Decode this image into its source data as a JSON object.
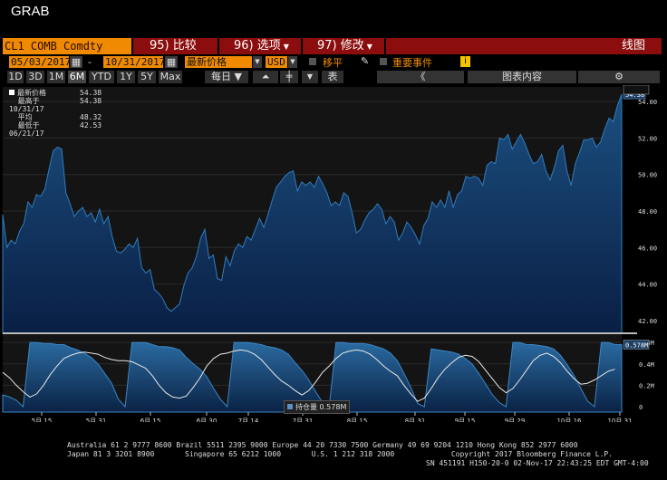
{
  "window_title": "GRAB",
  "command_bar": {
    "ticker": "CL1 COMB Comdty",
    "menu1": "95) 比较",
    "menu2": "96) 选项",
    "menu3": "97) 修改",
    "view_label": "线图"
  },
  "controls": {
    "start_date": "05/03/2017",
    "end_date": "10/31/2017",
    "dash": "-",
    "field": "最新价格",
    "currency": "USD",
    "move_label": "移平",
    "events_label": "重要事件",
    "info_glyph": "i"
  },
  "toolbar": {
    "ranges": [
      "1D",
      "3D",
      "1M",
      "6M",
      "YTD",
      "1Y",
      "5Y",
      "Max"
    ],
    "selected_range": "6M",
    "period": "每日",
    "table_label": "表",
    "back_glyph": "《",
    "chart_content_label": "图表内容",
    "settings_glyph": "⚙"
  },
  "legend": [
    {
      "label": "最新价格",
      "value": "54.38"
    },
    {
      "label": "最高于 10/31/17",
      "value": "54.38"
    },
    {
      "label": "平均",
      "value": "48.32"
    },
    {
      "label": "最低于 06/21/17",
      "value": "42.53"
    }
  ],
  "chart_data": {
    "type": "area",
    "panels": [
      {
        "name": "price",
        "y_ticks": [
          "42.00",
          "44.00",
          "46.00",
          "48.00",
          "50.00",
          "52.00",
          "54.00"
        ],
        "ylim": [
          41.3,
          54.8
        ],
        "last_label": "54.38",
        "values": [
          47.8,
          46.0,
          46.4,
          46.2,
          46.9,
          47.3,
          48.5,
          48.2,
          48.9,
          48.8,
          49.2,
          50.3,
          51.3,
          51.5,
          51.4,
          49.0,
          48.4,
          47.7,
          48.0,
          48.2,
          47.7,
          47.9,
          47.4,
          48.1,
          47.3,
          47.7,
          46.6,
          45.8,
          45.7,
          45.9,
          46.2,
          46.0,
          46.5,
          44.9,
          44.6,
          44.8,
          43.7,
          43.5,
          43.2,
          42.7,
          42.5,
          42.7,
          42.9,
          43.9,
          44.6,
          44.9,
          45.5,
          46.5,
          47.0,
          45.4,
          45.6,
          44.3,
          44.2,
          45.5,
          45.0,
          45.8,
          46.2,
          46.0,
          46.6,
          46.4,
          47.0,
          47.6,
          47.1,
          47.8,
          48.6,
          49.3,
          49.6,
          49.9,
          50.1,
          50.2,
          49.1,
          49.6,
          49.4,
          49.6,
          49.3,
          49.9,
          49.5,
          49.0,
          48.3,
          48.5,
          48.3,
          49.0,
          48.8,
          47.9,
          46.8,
          47.0,
          47.5,
          47.9,
          48.1,
          48.4,
          48.1,
          47.3,
          47.7,
          47.4,
          46.4,
          46.8,
          47.4,
          47.1,
          46.7,
          46.2,
          47.2,
          47.6,
          48.5,
          48.2,
          48.6,
          48.2,
          49.1,
          48.2,
          48.9,
          49.1,
          49.9,
          49.8,
          49.9,
          49.8,
          49.4,
          50.5,
          50.7,
          50.6,
          52.0,
          51.9,
          52.2,
          51.4,
          51.8,
          52.2,
          51.7,
          51.1,
          50.6,
          50.7,
          51.1,
          50.2,
          49.7,
          50.4,
          51.3,
          51.6,
          50.2,
          49.4,
          50.6,
          51.2,
          51.9,
          51.9,
          52.0,
          51.5,
          51.8,
          52.5,
          53.1,
          52.9,
          53.8,
          54.4
        ]
      },
      {
        "name": "open_interest",
        "legend_label": "持仓量",
        "legend_value": "0.578M",
        "y_ticks": [
          "0",
          "0.2M",
          "0.4M",
          "0.6M"
        ],
        "ylim": [
          -0.05,
          0.66
        ],
        "labels": [
          "0.578M",
          "0.354M"
        ],
        "series": [
          {
            "name": "持仓量",
            "values": [
              0.11,
              0.09,
              0.06,
              0.0,
              0.6,
              0.6,
              0.59,
              0.59,
              0.58,
              0.58,
              0.55,
              0.53,
              0.5,
              0.46,
              0.4,
              0.31,
              0.22,
              0.07,
              0.0,
              0.6,
              0.6,
              0.6,
              0.58,
              0.56,
              0.56,
              0.55,
              0.53,
              0.46,
              0.4,
              0.35,
              0.28,
              0.17,
              0.07,
              0.0,
              0.6,
              0.6,
              0.6,
              0.59,
              0.58,
              0.56,
              0.55,
              0.53,
              0.49,
              0.41,
              0.34,
              0.25,
              0.14,
              0.04,
              0.0,
              0.6,
              0.6,
              0.59,
              0.59,
              0.59,
              0.58,
              0.56,
              0.54,
              0.5,
              0.43,
              0.31,
              0.18,
              0.03,
              0.0,
              0.54,
              0.53,
              0.52,
              0.51,
              0.49,
              0.45,
              0.4,
              0.31,
              0.21,
              0.11,
              0.04,
              0.0,
              0.6,
              0.6,
              0.58,
              0.58,
              0.57,
              0.56,
              0.54,
              0.48,
              0.39,
              0.29,
              0.17,
              0.05,
              0.0,
              0.6,
              0.6,
              0.58,
              0.58
            ]
          },
          {
            "name": "line",
            "values": [
              0.32,
              0.27,
              0.2,
              0.14,
              0.09,
              0.12,
              0.2,
              0.3,
              0.38,
              0.45,
              0.48,
              0.5,
              0.51,
              0.5,
              0.49,
              0.46,
              0.44,
              0.43,
              0.43,
              0.42,
              0.39,
              0.36,
              0.29,
              0.2,
              0.13,
              0.09,
              0.08,
              0.1,
              0.18,
              0.27,
              0.38,
              0.45,
              0.49,
              0.5,
              0.52,
              0.53,
              0.52,
              0.49,
              0.44,
              0.37,
              0.3,
              0.24,
              0.2,
              0.15,
              0.11,
              0.15,
              0.23,
              0.32,
              0.38,
              0.45,
              0.5,
              0.52,
              0.53,
              0.52,
              0.49,
              0.44,
              0.38,
              0.33,
              0.29,
              0.2,
              0.12,
              0.05,
              0.08,
              0.17,
              0.27,
              0.35,
              0.41,
              0.46,
              0.48,
              0.47,
              0.42,
              0.34,
              0.26,
              0.18,
              0.13,
              0.17,
              0.25,
              0.34,
              0.43,
              0.48,
              0.5,
              0.47,
              0.41,
              0.33,
              0.26,
              0.21,
              0.22,
              0.25,
              0.29,
              0.33,
              0.35
            ]
          }
        ]
      }
    ],
    "x_ticks": [
      "5月 15",
      "5月 31",
      "6月 15",
      "6月 30",
      "7月 14",
      "7月 31",
      "8月 15",
      "8月 31",
      "9月 15",
      "9月 29",
      "10月 16",
      "10月 31"
    ],
    "year_label": "2017"
  },
  "footer": {
    "line1": "Australia 61 2 9777 8600 Brazil 5511 2395 9000 Europe 44 20 7330 7500 Germany 49 69 9204 1210 Hong Kong 852 2977 6000",
    "line2": "Japan 81 3 3201 8900       Singapore 65 6212 1000       U.S. 1 212 318 2000             Copyright 2017 Bloomberg Finance L.P.",
    "line3": "SN 451191 H150-20-0 02-Nov-17 22:43:25 EDT  GMT-4:00"
  },
  "colors": {
    "orange": "#f08a00",
    "darkred": "#8b0d0d",
    "area_fill": "#0f2a52",
    "area_line": "#1e5a9a"
  }
}
